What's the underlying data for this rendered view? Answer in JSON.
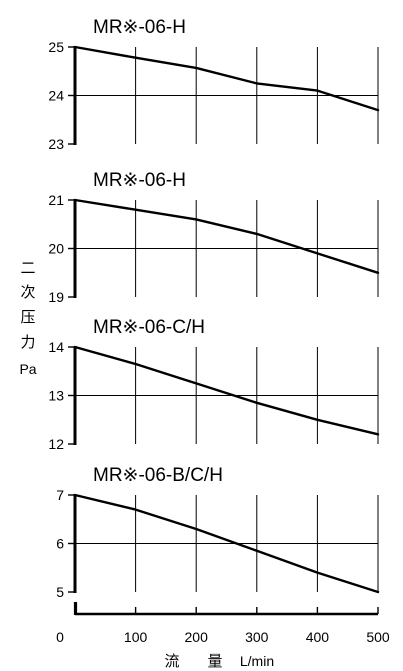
{
  "chart_data": [
    {
      "type": "line",
      "title": "MR※-06-H",
      "x": [
        0,
        100,
        200,
        300,
        400,
        500
      ],
      "series": [
        {
          "values": [
            25.0,
            24.78,
            24.57,
            24.25,
            24.1,
            23.7
          ]
        }
      ],
      "yticks": [
        "25",
        "24",
        "23"
      ],
      "ylim": [
        23,
        25
      ],
      "xlim": [
        0,
        500
      ],
      "grid": true
    },
    {
      "type": "line",
      "title": "MR※-06-H",
      "x": [
        0,
        100,
        200,
        300,
        400,
        500
      ],
      "series": [
        {
          "values": [
            21.0,
            20.8,
            20.6,
            20.3,
            19.9,
            19.5
          ]
        }
      ],
      "yticks": [
        "21",
        "20",
        "19"
      ],
      "ylim": [
        19,
        21
      ],
      "xlim": [
        0,
        500
      ],
      "grid": true
    },
    {
      "type": "line",
      "title": "MR※-06-C/H",
      "x": [
        0,
        100,
        200,
        300,
        400,
        500
      ],
      "series": [
        {
          "values": [
            14.0,
            13.65,
            13.25,
            12.85,
            12.5,
            12.2
          ]
        }
      ],
      "yticks": [
        "14",
        "13",
        "12"
      ],
      "ylim": [
        12,
        14
      ],
      "xlim": [
        0,
        500
      ],
      "grid": true
    },
    {
      "type": "line",
      "title": "MR※-06-B/C/H",
      "x": [
        0,
        100,
        200,
        300,
        400,
        500
      ],
      "series": [
        {
          "values": [
            7.0,
            6.7,
            6.3,
            5.85,
            5.4,
            5.0
          ]
        }
      ],
      "yticks": [
        "7",
        "6",
        "5"
      ],
      "ylim": [
        5,
        7
      ],
      "xlim": [
        0,
        500
      ],
      "grid": true
    }
  ],
  "x_axis": {
    "ticks": [
      "0",
      "100",
      "200",
      "300",
      "400",
      "500"
    ],
    "label_chars": [
      "流",
      "量"
    ],
    "unit": "L/min"
  },
  "y_axis": {
    "label_chars": [
      "二",
      "次",
      "压",
      "力"
    ],
    "unit": "Pa"
  }
}
